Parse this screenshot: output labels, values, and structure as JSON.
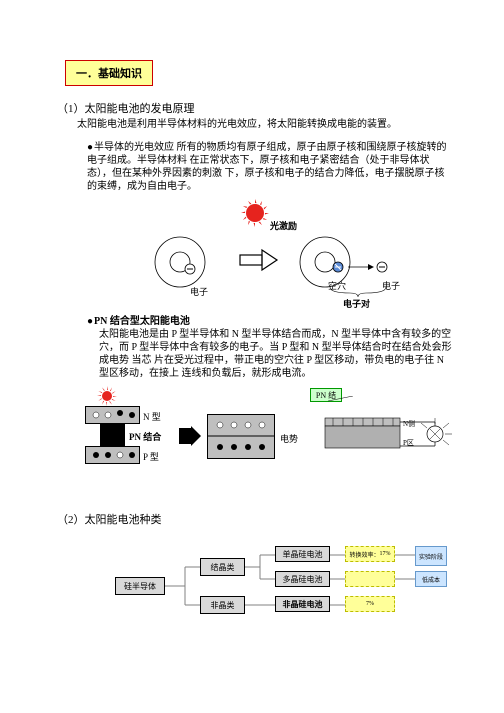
{
  "header": {
    "label": "一．基础知识",
    "bg": "#ffff99",
    "border": "#cc0000"
  },
  "section1": {
    "title": "（1）太阳能电池的发电原理",
    "intro": "太阳能电池是利用半导体材料的光电效应，将太阳能转换成电能的装置。",
    "bullet1_head": "半导体的光电效应",
    "bullet1_body": "所有的物质均有原子组成，原子由原子核和围绕原子核旋转的电子组成。半导体材料 在正常状态下，原子核和电子紧密结合（处于非导体状态），但在某种外界因素的刺激 下，原子核和电子的结合力降低，电子摆脱原子核的束缚，成为自由电子。",
    "fig1": {
      "excite_label": "光激励",
      "electron_label": "电子",
      "hole_label": "空穴",
      "pair_label": "电子对",
      "sun_color": "#e6231e",
      "arrow_color": "#000"
    },
    "bullet2_head": "PN 结合型太阳能电池",
    "bullet2_body": "太阳能电池是由 P 型半导体和 N 型半导体结合而成，N 型半导体中含有较多的空穴，而 P 型半导体中含有较多的电子。当 P 型和 N 型半导体结合时在结合处会形成电势 当芯 片在受光过程中，带正电的空穴往 P 型区移动，带负电的电子往 N 型区移动，在接上 连线和负载后，就形成电流。",
    "fig2": {
      "n_label": "N 型",
      "pn_label": "PN 结合",
      "p_label": "P 型",
      "potential_label": "电势",
      "pn_box_label": "PN 结",
      "n_side": "N侧",
      "p_side": "P区",
      "cell_bg": "#bfbfbf",
      "border": "#000",
      "sun_color": "#e6231e",
      "pn_box_bg": "#ccffcc",
      "pn_box_border": "#009900"
    }
  },
  "section2": {
    "title": "（2）太阳能电池种类",
    "tree": {
      "root": "硅半导体",
      "branch1": "结晶类",
      "branch2": "非晶类",
      "leaf1": "单晶硅电池",
      "leaf2": "多晶硅电池",
      "leaf3": "非晶硅电池",
      "eff1_label": "转换效率：",
      "eff1_val": "17%",
      "eff2_val": "",
      "eff3_val": "7%",
      "side1": "实验阶段",
      "side2": "低成本",
      "box_bg": "#d9d9d9",
      "box_border": "#000",
      "eff_bg": "#ffff99",
      "eff_border": "#bdbd00",
      "side_bg": "#cce5ff",
      "side_border": "#6699cc"
    }
  }
}
